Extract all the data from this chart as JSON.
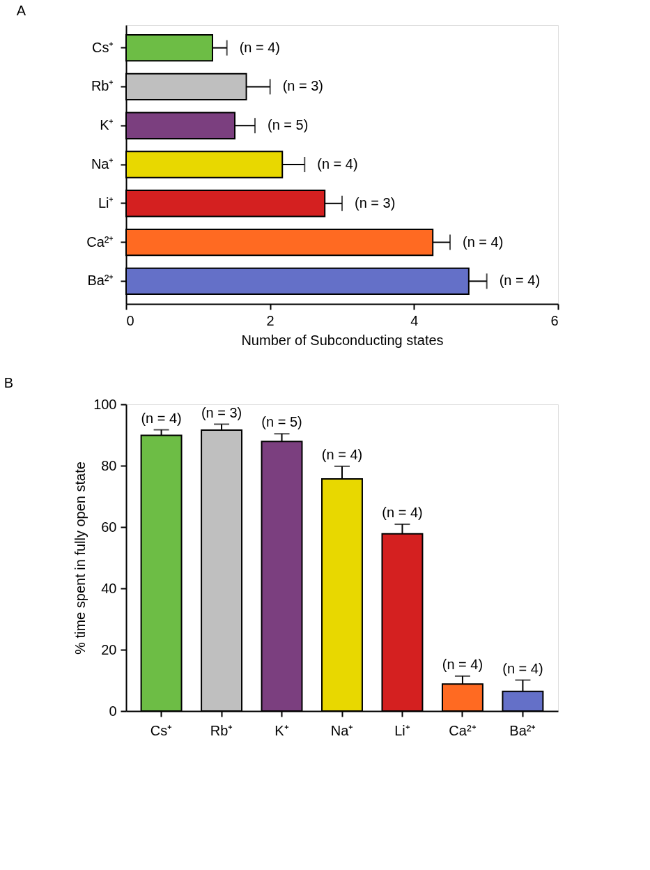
{
  "chart_data": [
    {
      "type": "bar",
      "title": "A",
      "orientation": "horizontal",
      "xlabel": "Number of Subconducting states",
      "categories": [
        "Cs⁺",
        "Rb⁺",
        "K⁺",
        "Na⁺",
        "Li⁺",
        "Ca²⁺",
        "Ba²⁺"
      ],
      "values": [
        1.2,
        1.67,
        1.51,
        2.17,
        2.76,
        4.26,
        4.76
      ],
      "errors": [
        [
          1.2,
          1.4
        ],
        [
          1.67,
          2.0
        ],
        [
          1.51,
          1.79
        ],
        [
          2.17,
          2.48
        ],
        [
          2.76,
          3.0
        ],
        [
          4.26,
          4.5
        ],
        [
          4.76,
          5.01
        ]
      ],
      "colors": [
        "#6dbd45",
        "#bfbfbf",
        "#7b3f7f",
        "#e8d800",
        "#d42020",
        "#ff6a22",
        "#6470c8"
      ],
      "xlim": [
        0,
        6
      ],
      "xticks": [
        0,
        2,
        4,
        6
      ],
      "grid": false,
      "annotations": [
        {
          "text": "(n = 4)",
          "x": 1.4,
          "y": "Cs⁺"
        },
        {
          "text": "(n = 3)",
          "x": 2.0,
          "y": "Rb⁺"
        },
        {
          "text": "(n = 5)",
          "x": 1.79,
          "y": "K⁺"
        },
        {
          "text": "(n = 4)",
          "x": 2.48,
          "y": "Na⁺"
        },
        {
          "text": "(n = 3)",
          "x": 3.0,
          "y": "Li⁺"
        },
        {
          "text": "(n = 4)",
          "x": 4.5,
          "y": "Ca²⁺"
        },
        {
          "text": "(n = 4)",
          "x": 5.01,
          "y": "Ba²⁺"
        }
      ]
    },
    {
      "type": "bar",
      "title": "B",
      "ylabel": "% time spent in fully open state",
      "categories": [
        "Cs⁺",
        "Rb⁺",
        "K⁺",
        "Na⁺",
        "Li⁺",
        "Ca²⁺",
        "Ba²⁺"
      ],
      "values": [
        89.9,
        91.6,
        87.9,
        75.7,
        57.8,
        8.8,
        6.4
      ],
      "errors": [
        [
          89.9,
          91.7
        ],
        [
          91.6,
          93.5
        ],
        [
          87.9,
          90.4
        ],
        [
          75.7,
          79.8
        ],
        [
          57.8,
          60.9
        ],
        [
          8.8,
          11.4
        ],
        [
          6.4,
          10.1
        ]
      ],
      "colors": [
        "#6dbd45",
        "#bfbfbf",
        "#7b3f7f",
        "#e8d800",
        "#d42020",
        "#ff6a22",
        "#6470c8"
      ],
      "ylim": [
        0,
        100
      ],
      "yticks": [
        0,
        20,
        40,
        60,
        80,
        100
      ],
      "grid": false,
      "annotations": [
        {
          "text": "(n = 4)",
          "x": "Cs⁺",
          "y": 91.7
        },
        {
          "text": "(n = 3)",
          "x": "Rb⁺",
          "y": 93.5
        },
        {
          "text": "(n = 5)",
          "x": "K⁺",
          "y": 90.4
        },
        {
          "text": "(n = 4)",
          "x": "Na⁺",
          "y": 79.8
        },
        {
          "text": "(n = 4)",
          "x": "Li⁺",
          "y": 60.9
        },
        {
          "text": "(n = 4)",
          "x": "Ca²⁺",
          "y": 11.4
        },
        {
          "text": "(n = 4)",
          "x": "Ba²⁺",
          "y": 10.1
        }
      ]
    }
  ]
}
